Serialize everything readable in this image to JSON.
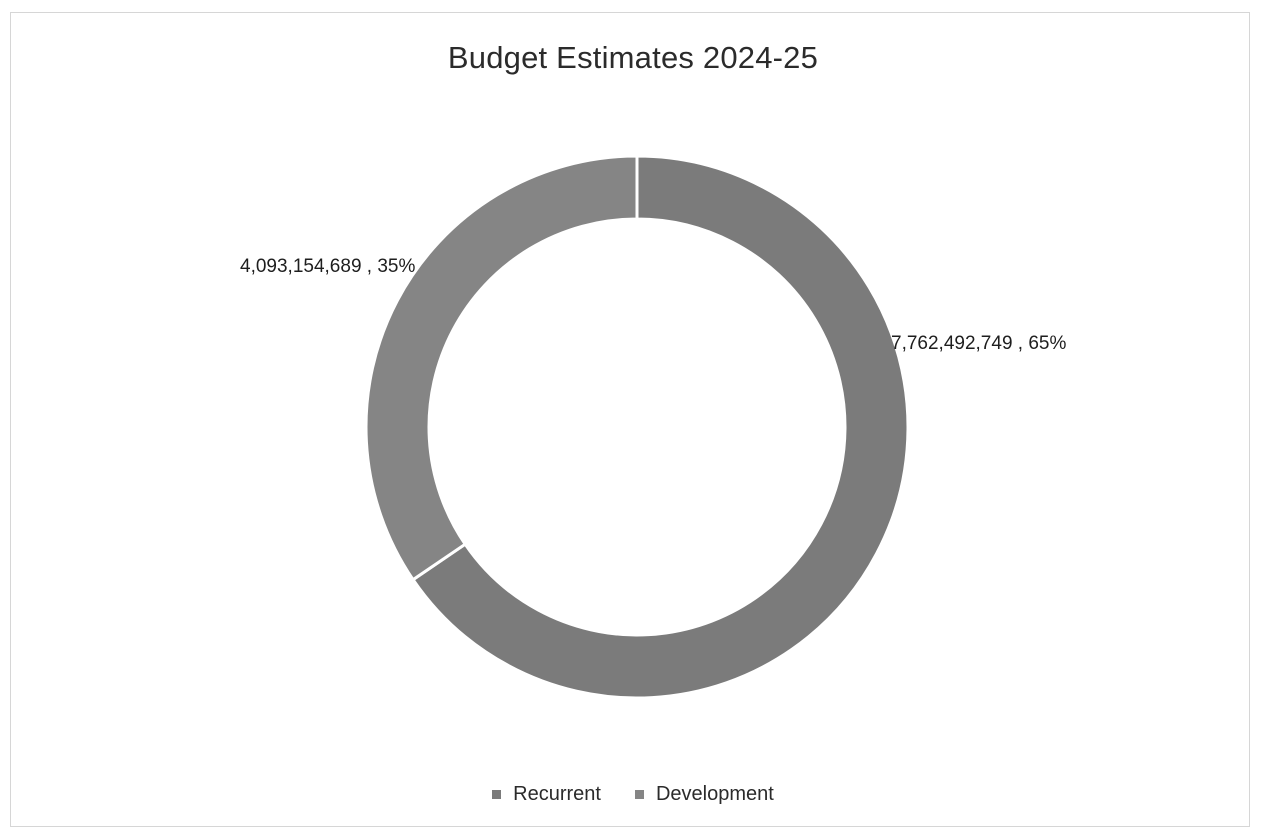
{
  "chart_data": {
    "type": "pie",
    "variant": "donut",
    "title": "Budget Estimates 2024-25",
    "legend_position": "bottom",
    "slices": [
      {
        "name": "Recurrent",
        "value": 7762492749,
        "label": "7,762,492,749 , 65%",
        "color": "#7b7b7b"
      },
      {
        "name": "Development",
        "value": 4093154689,
        "label": "4,093,154,689 , 35%",
        "color": "#858585"
      }
    ]
  }
}
